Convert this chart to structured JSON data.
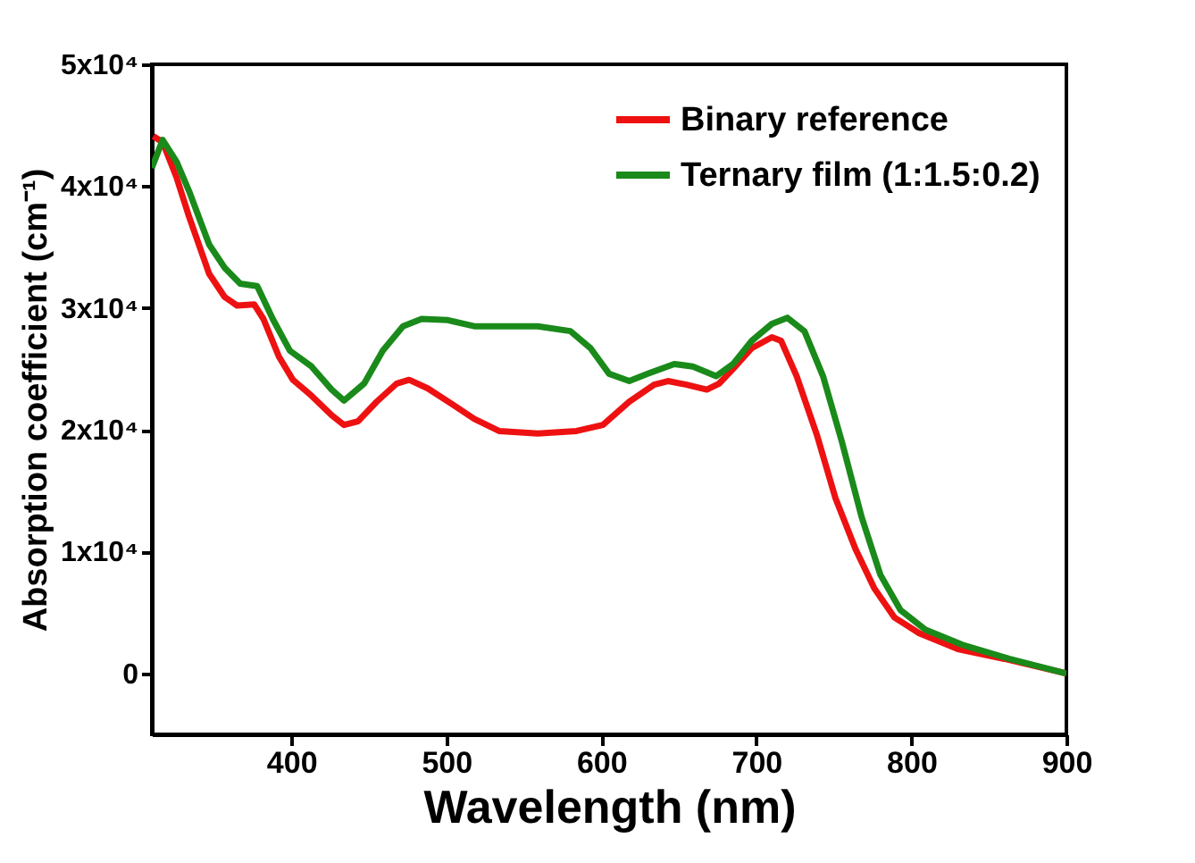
{
  "chart_data": {
    "type": "line",
    "xlabel": "Wavelength (nm)",
    "ylabel": "Absorption coefficient (cm⁻¹)",
    "xlim": [
      310,
      900
    ],
    "xticks": [
      400,
      500,
      600,
      700,
      800,
      900
    ],
    "ylim": [
      -5000,
      50000
    ],
    "yticks": [
      {
        "value": 0,
        "label": "0"
      },
      {
        "value": 10000,
        "label": "1x10⁴"
      },
      {
        "value": 20000,
        "label": "2x10⁴"
      },
      {
        "value": 30000,
        "label": "3x10⁴"
      },
      {
        "value": 40000,
        "label": "4x10⁴"
      },
      {
        "value": 50000,
        "label": "5x10⁴"
      }
    ],
    "grid": false,
    "legend": "top right",
    "line_style": "solid",
    "marker": "none",
    "series": [
      {
        "name": "Binary reference",
        "color": "#ee1111",
        "x": [
          311,
          317,
          326,
          334,
          347,
          357,
          365,
          376,
          382,
          392,
          401,
          413,
          426,
          434,
          443,
          455,
          468,
          476,
          488,
          505,
          518,
          534,
          559,
          584,
          601,
          618,
          634,
          643,
          655,
          668,
          676,
          685,
          697,
          710,
          716,
          726,
          739,
          751,
          764,
          776,
          789,
          805,
          830,
          860,
          900
        ],
        "values": [
          44100,
          43600,
          40700,
          37500,
          32800,
          30900,
          30200,
          30300,
          29100,
          26000,
          24100,
          22800,
          21200,
          20400,
          20700,
          22300,
          23800,
          24100,
          23400,
          22000,
          20900,
          19900,
          19700,
          19900,
          20400,
          22300,
          23700,
          24000,
          23700,
          23300,
          23800,
          25000,
          26700,
          27600,
          27300,
          24400,
          19600,
          14400,
          10200,
          7000,
          4600,
          3300,
          2000,
          1200,
          0
        ]
      },
      {
        "name": "Ternary film (1:1.5:0.2)",
        "color": "#1a8a1a",
        "x": [
          310,
          317,
          326,
          334,
          347,
          357,
          367,
          378,
          388,
          399,
          413,
          426,
          434,
          447,
          459,
          472,
          484,
          501,
          518,
          539,
          559,
          580,
          593,
          605,
          618,
          630,
          647,
          659,
          674,
          685,
          697,
          710,
          720,
          731,
          743,
          755,
          768,
          780,
          793,
          809,
          834,
          863,
          900
        ],
        "values": [
          41500,
          43800,
          42000,
          39600,
          35200,
          33300,
          32000,
          31800,
          29100,
          26500,
          25200,
          23300,
          22400,
          23800,
          26500,
          28500,
          29100,
          29000,
          28500,
          28500,
          28500,
          28100,
          26700,
          24600,
          24000,
          24600,
          25400,
          25200,
          24400,
          25400,
          27300,
          28700,
          29200,
          28100,
          24400,
          19100,
          12800,
          8100,
          5200,
          3600,
          2300,
          1200,
          0
        ]
      }
    ]
  }
}
